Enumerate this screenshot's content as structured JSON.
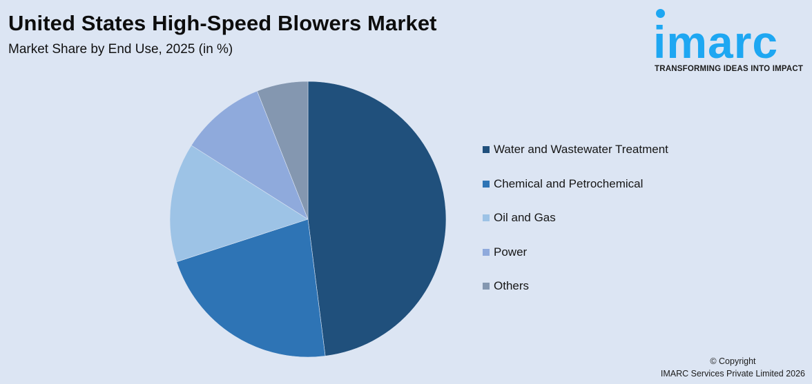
{
  "header": {
    "title": "United States High-Speed Blowers Market",
    "subtitle": "Market Share by End Use, 2025 (in %)"
  },
  "logo": {
    "word": "imarc",
    "tagline": "TRANSFORMING IDEAS INTO IMPACT",
    "color": "#1ea7f2"
  },
  "footer": {
    "line1": "© Copyright",
    "line2": "IMARC Services Private Limited 2026"
  },
  "chart_data": {
    "type": "pie",
    "title": "United States High-Speed Blowers Market",
    "subtitle": "Market Share by End Use, 2025 (in %)",
    "categories": [
      "Water and Wastewater Treatment",
      "Chemical and Petrochemical",
      "Oil and Gas",
      "Power",
      "Others"
    ],
    "values": [
      48,
      22,
      14,
      10,
      6
    ],
    "colors": [
      "#20507c",
      "#2e74b5",
      "#9dc3e6",
      "#8faadc",
      "#8497b0"
    ],
    "start_angle_deg": 0,
    "direction": "clockwise",
    "legend_position": "right",
    "data_labels": false
  }
}
